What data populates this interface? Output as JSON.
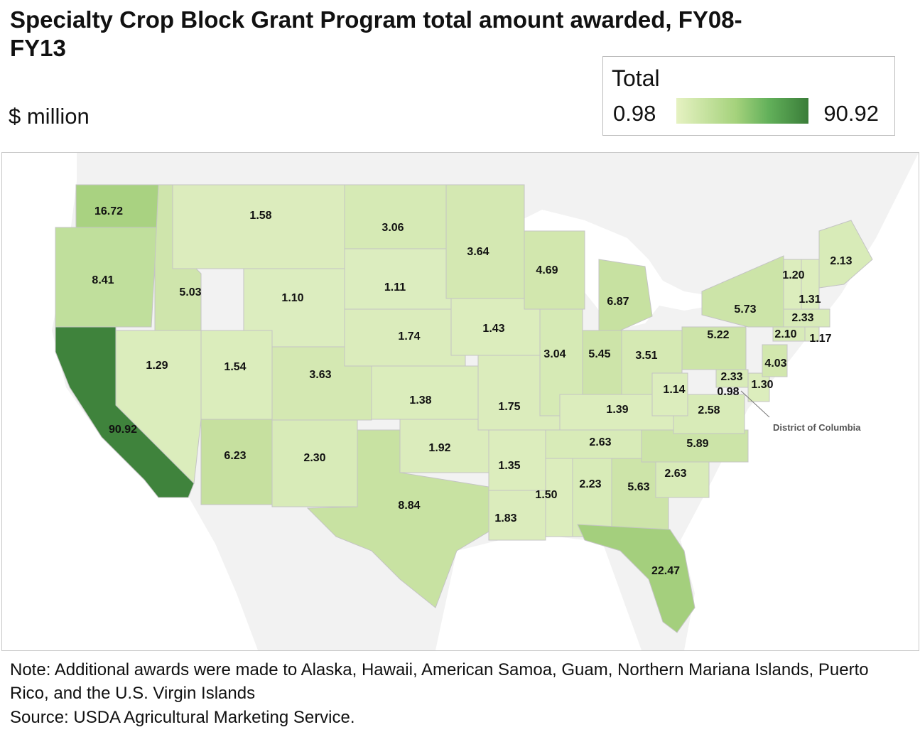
{
  "title": "Specialty Crop Block Grant Program total amount awarded, FY08-FY13",
  "unit_label": "$ million",
  "legend": {
    "title": "Total",
    "min_label": "0.98",
    "max_label": "90.92",
    "min_color": "#e6f2c2",
    "max_color": "#3a7d39"
  },
  "map": {
    "callout_label": "District of Columbia",
    "colors": {
      "water": "#ffffff",
      "land_outside": "#f2f2f2",
      "border": "#c8c8c8"
    },
    "states": [
      {
        "name": "Washington",
        "value": "16.72"
      },
      {
        "name": "Oregon",
        "value": "8.41"
      },
      {
        "name": "California",
        "value": "90.92"
      },
      {
        "name": "Idaho",
        "value": "5.03"
      },
      {
        "name": "Nevada",
        "value": "1.29"
      },
      {
        "name": "Montana",
        "value": "1.58"
      },
      {
        "name": "Wyoming",
        "value": "1.10"
      },
      {
        "name": "Utah",
        "value": "1.54"
      },
      {
        "name": "Arizona",
        "value": "6.23"
      },
      {
        "name": "Colorado",
        "value": "3.63"
      },
      {
        "name": "New Mexico",
        "value": "2.30"
      },
      {
        "name": "North Dakota",
        "value": "3.06"
      },
      {
        "name": "South Dakota",
        "value": "1.11"
      },
      {
        "name": "Nebraska",
        "value": "1.74"
      },
      {
        "name": "Kansas",
        "value": "1.38"
      },
      {
        "name": "Oklahoma",
        "value": "1.92"
      },
      {
        "name": "Texas",
        "value": "8.84"
      },
      {
        "name": "Minnesota",
        "value": "3.64"
      },
      {
        "name": "Iowa",
        "value": "1.43"
      },
      {
        "name": "Missouri",
        "value": "1.75"
      },
      {
        "name": "Arkansas",
        "value": "1.35"
      },
      {
        "name": "Louisiana",
        "value": "1.83"
      },
      {
        "name": "Wisconsin",
        "value": "4.69"
      },
      {
        "name": "Illinois",
        "value": "3.04"
      },
      {
        "name": "Michigan",
        "value": "6.87"
      },
      {
        "name": "Indiana",
        "value": "5.45"
      },
      {
        "name": "Ohio",
        "value": "3.51"
      },
      {
        "name": "Kentucky",
        "value": "1.39"
      },
      {
        "name": "Tennessee",
        "value": "2.63"
      },
      {
        "name": "Mississippi",
        "value": "1.50"
      },
      {
        "name": "Alabama",
        "value": "2.23"
      },
      {
        "name": "Georgia",
        "value": "5.63"
      },
      {
        "name": "Florida",
        "value": "22.47"
      },
      {
        "name": "South Carolina",
        "value": "2.63"
      },
      {
        "name": "North Carolina",
        "value": "5.89"
      },
      {
        "name": "Virginia",
        "value": "2.58"
      },
      {
        "name": "West Virginia",
        "value": "1.14"
      },
      {
        "name": "Pennsylvania",
        "value": "5.22"
      },
      {
        "name": "New York",
        "value": "5.73"
      },
      {
        "name": "Maryland",
        "value": "2.33"
      },
      {
        "name": "District of Columbia",
        "value": "0.98"
      },
      {
        "name": "Delaware",
        "value": "1.30"
      },
      {
        "name": "New Jersey",
        "value": "4.03"
      },
      {
        "name": "Connecticut",
        "value": "2.10"
      },
      {
        "name": "Rhode Island",
        "value": "1.17"
      },
      {
        "name": "Massachusetts",
        "value": "2.33"
      },
      {
        "name": "Vermont",
        "value": "1.20"
      },
      {
        "name": "New Hampshire",
        "value": "1.31"
      },
      {
        "name": "Maine",
        "value": "2.13"
      }
    ]
  },
  "note": "Note: Additional awards were made to Alaska, Hawaii, American Samoa, Guam, Northern Mariana Islands, Puerto Rico, and the U.S. Virgin Islands",
  "source": "Source: USDA Agricultural Marketing Service."
}
